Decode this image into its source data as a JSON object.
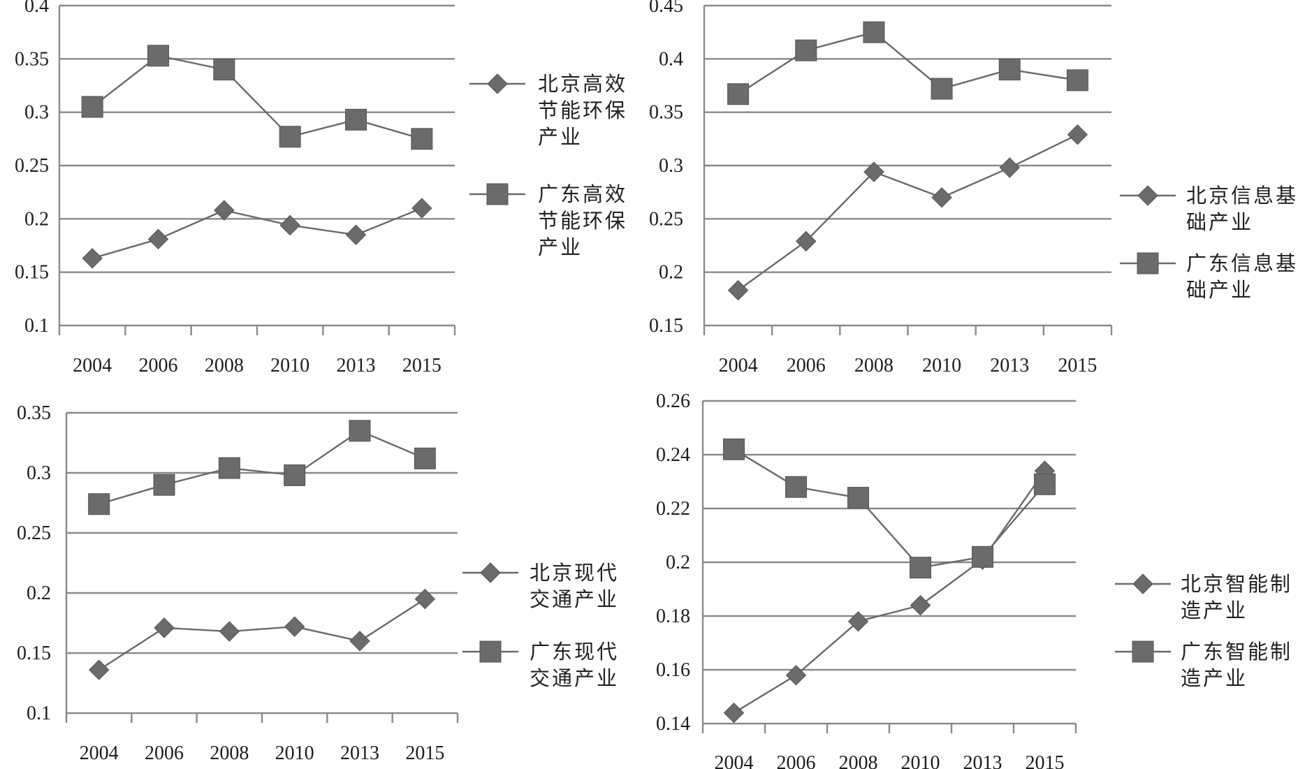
{
  "chart_data": [
    {
      "type": "line",
      "categories": [
        "2004",
        "2006",
        "2008",
        "2010",
        "2013",
        "2015"
      ],
      "ylim": [
        0.1,
        0.4
      ],
      "yticks": [
        "0.1",
        "0.15",
        "0.2",
        "0.25",
        "0.3",
        "0.35",
        "0.4"
      ],
      "grid": true,
      "legend_position": "right",
      "series": [
        {
          "name": "北京高效节能环保产业",
          "marker": "diamond",
          "legend_lines": [
            "北京高效",
            "节能环保",
            "产业"
          ],
          "values": [
            0.163,
            0.181,
            0.208,
            0.194,
            0.185,
            0.21
          ]
        },
        {
          "name": "广东高效节能环保产业",
          "marker": "square",
          "legend_lines": [
            "广东高效",
            "节能环保",
            "产业"
          ],
          "values": [
            0.305,
            0.353,
            0.34,
            0.277,
            0.293,
            0.275
          ]
        }
      ]
    },
    {
      "type": "line",
      "categories": [
        "2004",
        "2006",
        "2008",
        "2010",
        "2013",
        "2015"
      ],
      "ylim": [
        0.15,
        0.45
      ],
      "yticks": [
        "0.15",
        "0.2",
        "0.25",
        "0.3",
        "0.35",
        "0.4",
        "0.45"
      ],
      "grid": true,
      "legend_position": "right",
      "series": [
        {
          "name": "北京信息基础产业",
          "marker": "diamond",
          "legend_lines": [
            "北京信息基",
            "础产业"
          ],
          "values": [
            0.183,
            0.229,
            0.294,
            0.27,
            0.298,
            0.329
          ]
        },
        {
          "name": "广东信息基础产业",
          "marker": "square",
          "legend_lines": [
            "广东信息基",
            "础产业"
          ],
          "values": [
            0.367,
            0.408,
            0.425,
            0.372,
            0.39,
            0.38
          ]
        }
      ]
    },
    {
      "type": "line",
      "categories": [
        "2004",
        "2006",
        "2008",
        "2010",
        "2013",
        "2015"
      ],
      "ylim": [
        0.1,
        0.35
      ],
      "yticks": [
        "0.1",
        "0.15",
        "0.2",
        "0.25",
        "0.3",
        "0.35"
      ],
      "grid": true,
      "legend_position": "right",
      "series": [
        {
          "name": "北京现代交通产业",
          "marker": "diamond",
          "legend_lines": [
            "北京现代",
            "交通产业"
          ],
          "values": [
            0.136,
            0.171,
            0.168,
            0.172,
            0.16,
            0.195
          ]
        },
        {
          "name": "广东现代交通产业",
          "marker": "square",
          "legend_lines": [
            "广东现代",
            "交通产业"
          ],
          "values": [
            0.274,
            0.29,
            0.304,
            0.298,
            0.335,
            0.312
          ]
        }
      ]
    },
    {
      "type": "line",
      "categories": [
        "2004",
        "2006",
        "2008",
        "2010",
        "2013",
        "2015"
      ],
      "ylim": [
        0.14,
        0.26
      ],
      "yticks": [
        "0.14",
        "0.16",
        "0.18",
        "0.2",
        "0.22",
        "0.24",
        "0.26"
      ],
      "grid": true,
      "legend_position": "right",
      "series": [
        {
          "name": "北京智能制造产业",
          "marker": "diamond",
          "legend_lines": [
            "北京智能制",
            "造产业"
          ],
          "values": [
            0.144,
            0.158,
            0.178,
            0.184,
            0.201,
            0.234
          ]
        },
        {
          "name": "广东智能制造产业",
          "marker": "square",
          "legend_lines": [
            "广东智能制",
            "造产业"
          ],
          "values": [
            0.242,
            0.228,
            0.224,
            0.198,
            0.202,
            0.229
          ]
        }
      ]
    }
  ]
}
